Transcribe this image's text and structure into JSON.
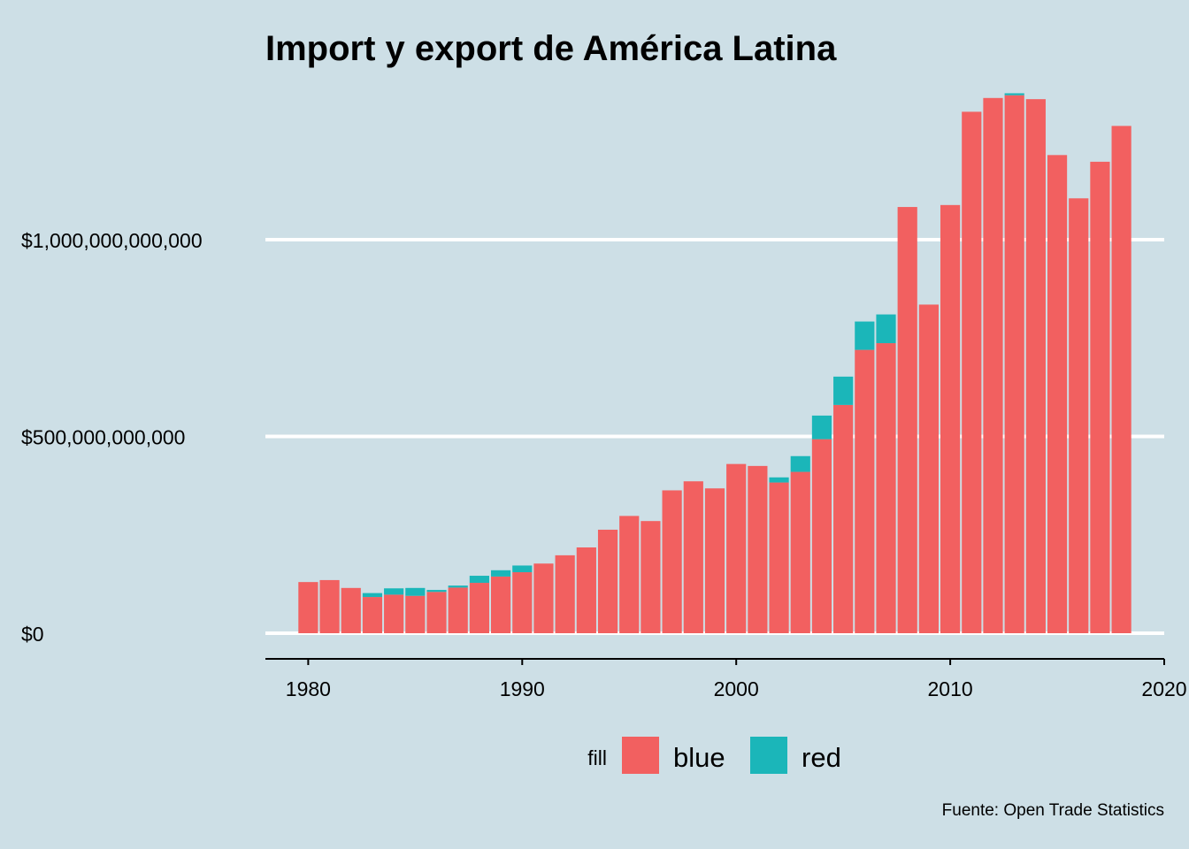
{
  "chart_data": {
    "type": "bar",
    "stacked": true,
    "title": "Import y export de América Latina",
    "caption": "Fuente: Open Trade Statistics",
    "xlabel": "",
    "ylabel": "",
    "xlim": [
      1978,
      2020
    ],
    "ylim": [
      0,
      1400000000000
    ],
    "x_ticks": [
      1980,
      1990,
      2000,
      2010,
      2020
    ],
    "y_ticks": [
      0,
      500000000000,
      1000000000000
    ],
    "y_tick_labels": [
      "$0",
      "$500,000,000,000",
      "$1,000,000,000,000"
    ],
    "grid": "horizontal-major",
    "legend": {
      "title": "fill",
      "position": "bottom"
    },
    "x": [
      1980,
      1981,
      1982,
      1983,
      1984,
      1985,
      1986,
      1987,
      1988,
      1989,
      1990,
      1991,
      1992,
      1993,
      1994,
      1995,
      1996,
      1997,
      1998,
      1999,
      2000,
      2001,
      2002,
      2003,
      2004,
      2005,
      2006,
      2007,
      2008,
      2009,
      2010,
      2011,
      2012,
      2013,
      2014,
      2015,
      2016,
      2017,
      2018
    ],
    "series": [
      {
        "name": "blue",
        "color": "#f26060",
        "values": [
          130000000000,
          135000000000,
          115000000000,
          92000000000,
          98000000000,
          95000000000,
          105000000000,
          116000000000,
          128000000000,
          144000000000,
          155000000000,
          177000000000,
          198000000000,
          218000000000,
          263000000000,
          298000000000,
          285000000000,
          363000000000,
          386000000000,
          368000000000,
          430000000000,
          425000000000,
          383000000000,
          410000000000,
          493000000000,
          580000000000,
          720000000000,
          737000000000,
          1083000000000,
          835000000000,
          1088000000000,
          1325000000000,
          1360000000000,
          1367000000000,
          1357000000000,
          1215000000000,
          1105000000000,
          1198000000000,
          1289000000000
        ]
      },
      {
        "name": "red",
        "color": "#1bb6b9",
        "values": [
          0,
          0,
          0,
          10000000000,
          16000000000,
          20000000000,
          5000000000,
          5000000000,
          18000000000,
          16000000000,
          17000000000,
          0,
          0,
          0,
          0,
          0,
          0,
          0,
          0,
          0,
          0,
          0,
          13000000000,
          40000000000,
          60000000000,
          72000000000,
          72000000000,
          73000000000,
          0,
          0,
          0,
          0,
          0,
          5000000000,
          0,
          0,
          0,
          0,
          0
        ]
      }
    ]
  }
}
